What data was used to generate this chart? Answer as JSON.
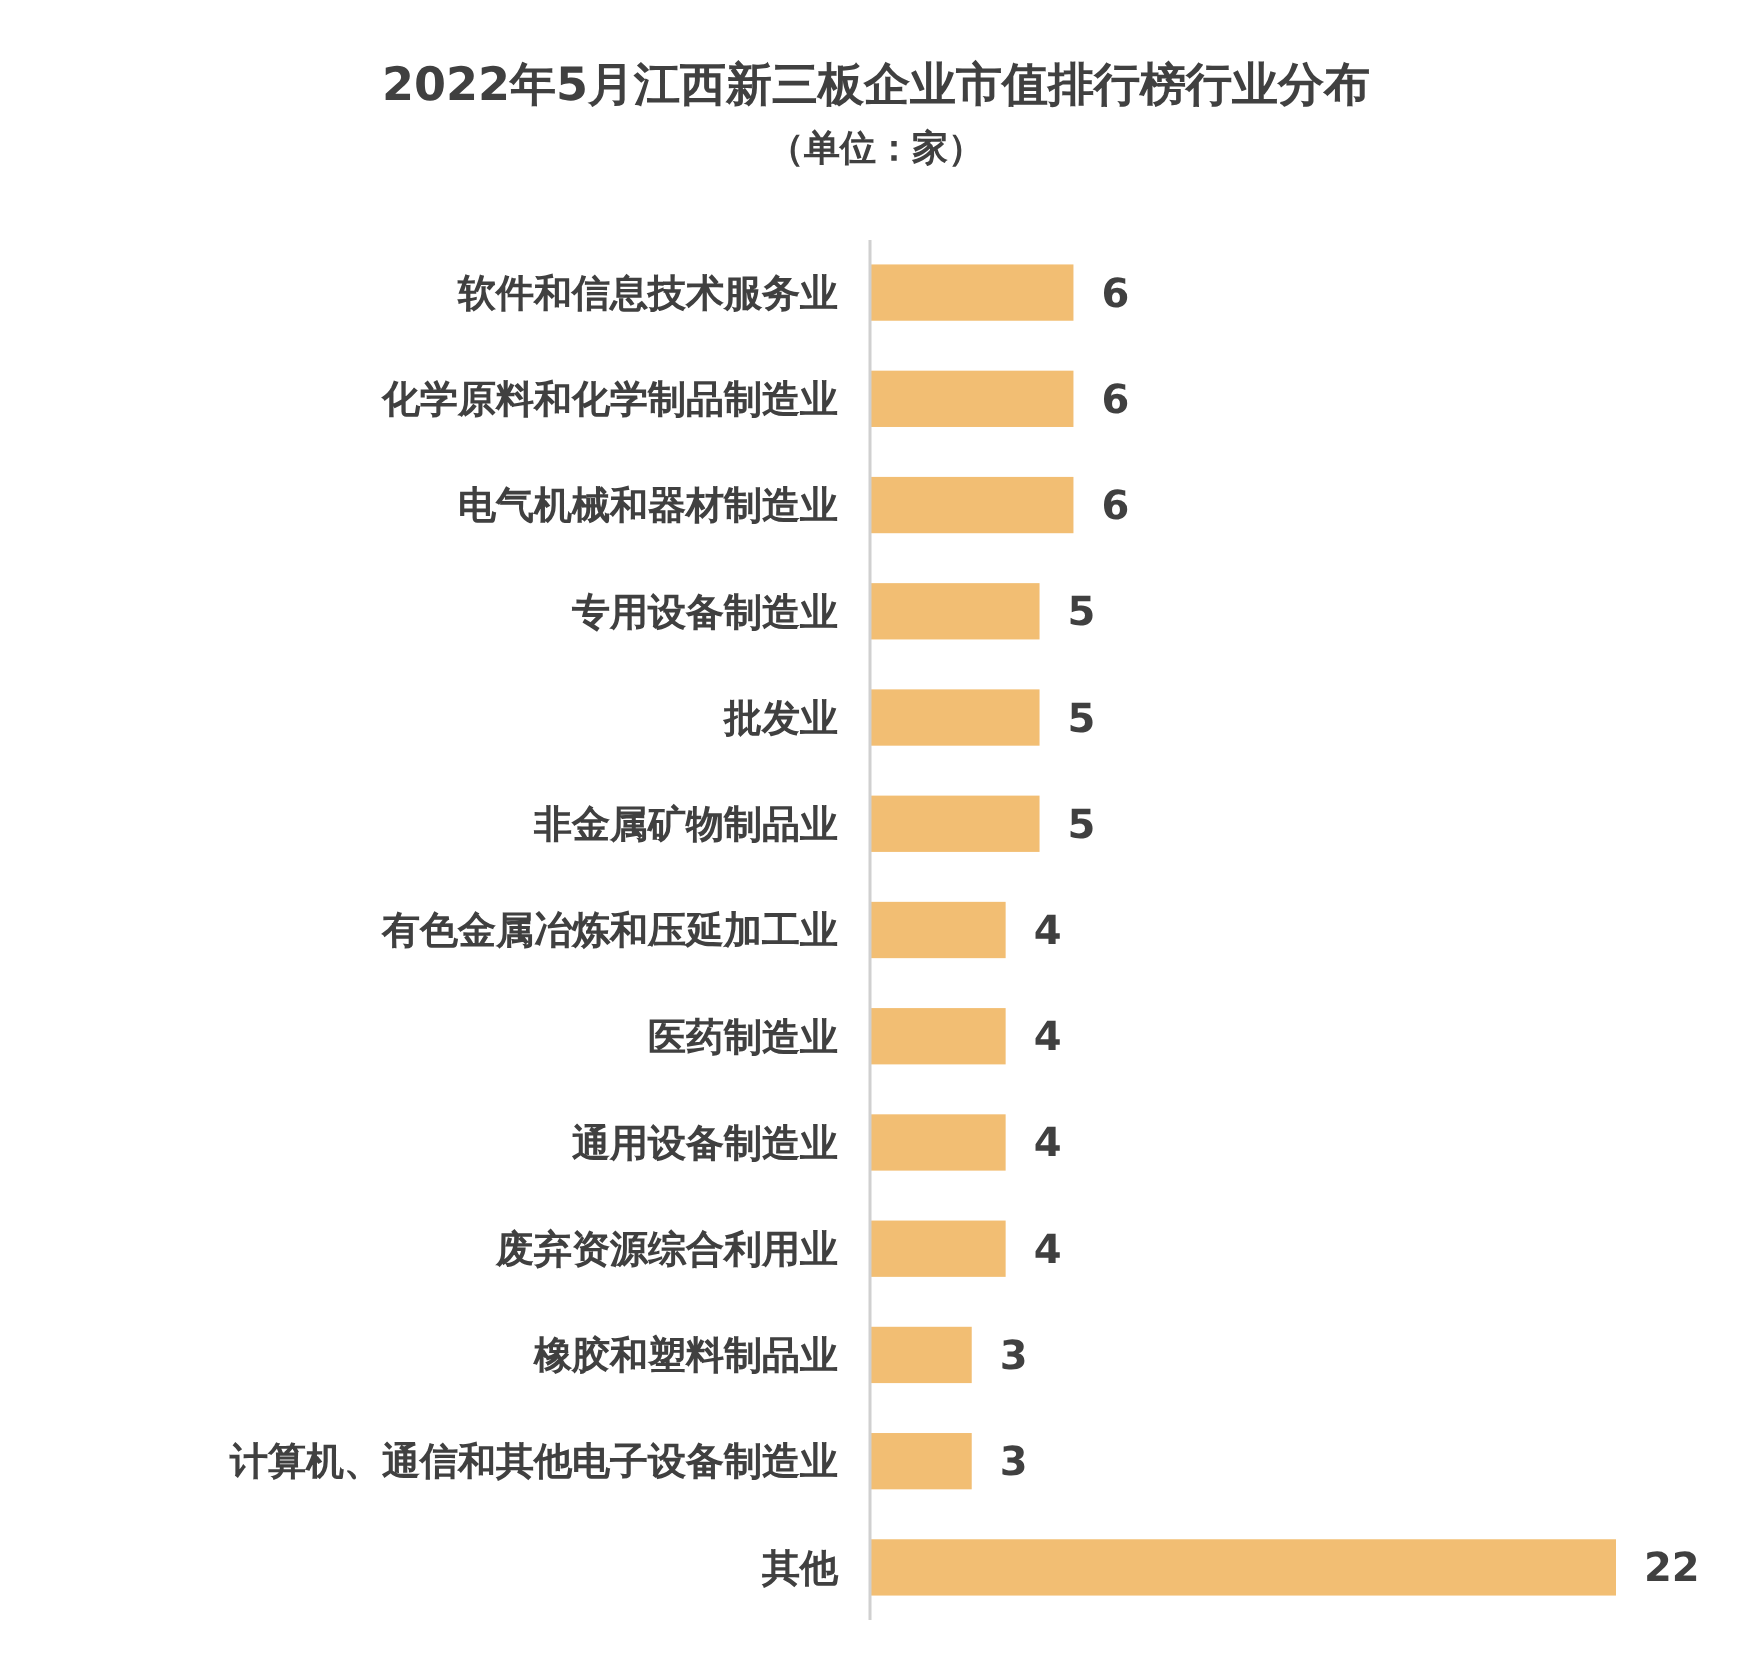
{
  "chart_data": {
    "type": "bar",
    "orientation": "horizontal",
    "title": "2022年5月江西新三板企业市值排行榜行业分布",
    "subtitle": "（单位：家）",
    "categories": [
      "软件和信息技术服务业",
      "化学原料和化学制品制造业",
      "电气机械和器材制造业",
      "专用设备制造业",
      "批发业",
      "非金属矿物制品业",
      "有色金属冶炼和压延加工业",
      "医药制造业",
      "通用设备制造业",
      "废弃资源综合利用业",
      "橡胶和塑料制品业",
      "计算机、通信和其他电子设备制造业",
      "其他"
    ],
    "values": [
      6,
      6,
      6,
      5,
      5,
      5,
      4,
      4,
      4,
      4,
      3,
      3,
      22
    ],
    "color": "#f2be73",
    "data_labels": true
  }
}
